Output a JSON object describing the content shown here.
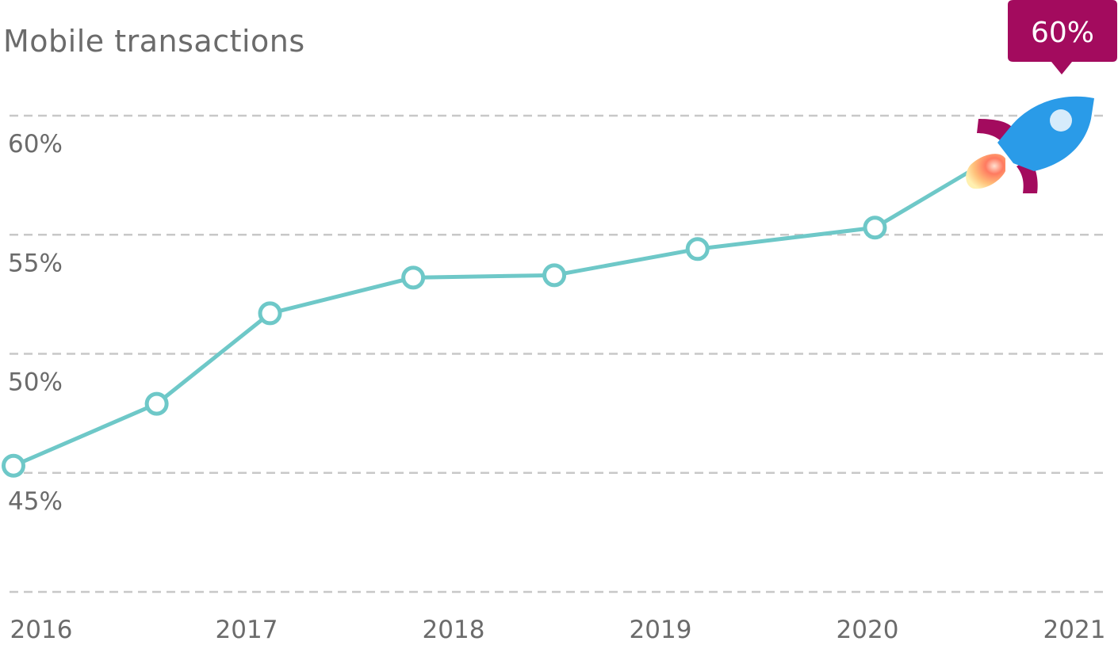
{
  "chart_data": {
    "type": "line",
    "title": "Mobile transactions",
    "x_tick_labels": [
      "2016",
      "2017",
      "2018",
      "2019",
      "2020",
      "2021"
    ],
    "y_tick_labels": [
      "60%",
      "55%",
      "50%",
      "45%"
    ],
    "y_ticks": [
      60,
      55,
      50,
      45
    ],
    "ylim": [
      40,
      61.5
    ],
    "xlim": [
      2016,
      2021
    ],
    "grid": true,
    "series": [
      {
        "x": [
          2016.0,
          2016.67,
          2017.2,
          2017.87,
          2018.53,
          2019.2,
          2020.03
        ],
        "y": [
          45.3,
          47.9,
          51.7,
          53.2,
          53.3,
          54.4,
          55.3
        ]
      }
    ],
    "projection": {
      "x": 2020.5,
      "y": 57.8
    },
    "callout": {
      "label": "60%",
      "x": 2020.95,
      "y": 60
    }
  },
  "colors": {
    "line": "#6ec8c8",
    "grid": "#c8c8c8",
    "text": "#6b6b6b",
    "callout": "#a30b5e",
    "rocket_body": "#2a9be8",
    "rocket_fin": "#a30b5e"
  },
  "icons": {
    "rocket": "rocket-icon"
  }
}
